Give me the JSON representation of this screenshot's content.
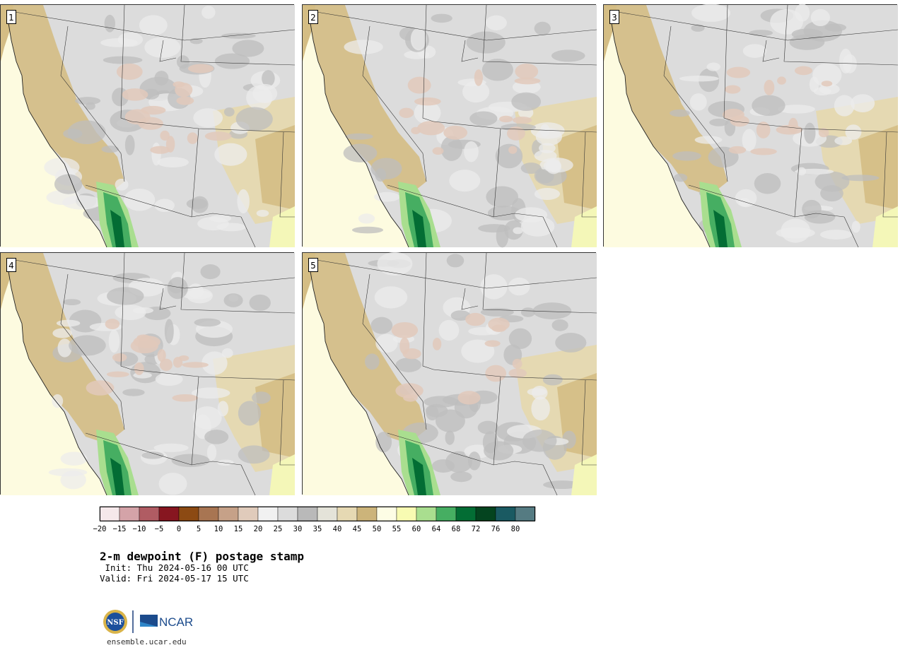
{
  "title": "2-m dewpoint (F) postage stamp",
  "init_text": " Init: Thu 2024-05-16 00 UTC",
  "valid_text": "Valid: Fri 2024-05-17 15 UTC",
  "website": "ensemble.ucar.edu",
  "logos": {
    "nsf": "NSF",
    "ncar": "NCAR"
  },
  "members": [
    {
      "label": "1"
    },
    {
      "label": "2"
    },
    {
      "label": "3"
    },
    {
      "label": "4"
    },
    {
      "label": "5"
    }
  ],
  "colorbar": {
    "ticks": [
      "−20",
      "−15",
      "−10",
      "−5",
      "0",
      "5",
      "10",
      "15",
      "20",
      "25",
      "30",
      "35",
      "40",
      "45",
      "50",
      "55",
      "60",
      "64",
      "68",
      "72",
      "76",
      "80"
    ],
    "colors": [
      "#f5e8ea",
      "#d4a3a8",
      "#b05c63",
      "#871620",
      "#8c4a13",
      "#a87552",
      "#c6a188",
      "#e0cbbb",
      "#f1f1f1",
      "#dcdcdc",
      "#b9b9b9",
      "#e4e3d9",
      "#e6d9b3",
      "#ccb47a",
      "#fdfde5",
      "#f8fbb2",
      "#a9de8f",
      "#46ae62",
      "#036d34",
      "#04441f",
      "#1a5a62",
      "#557b82"
    ]
  },
  "map_colors": {
    "ocean": "#fdfbe0",
    "tan": "#d4bd84",
    "light_tan": "#e5d9b2",
    "gray": "#bdbdbd",
    "light_gray": "#dcdcdc",
    "pinkish": "#e2c9bb",
    "green_light": "#a9de8f",
    "green_mid": "#46ae62",
    "green_dark": "#036d34"
  }
}
